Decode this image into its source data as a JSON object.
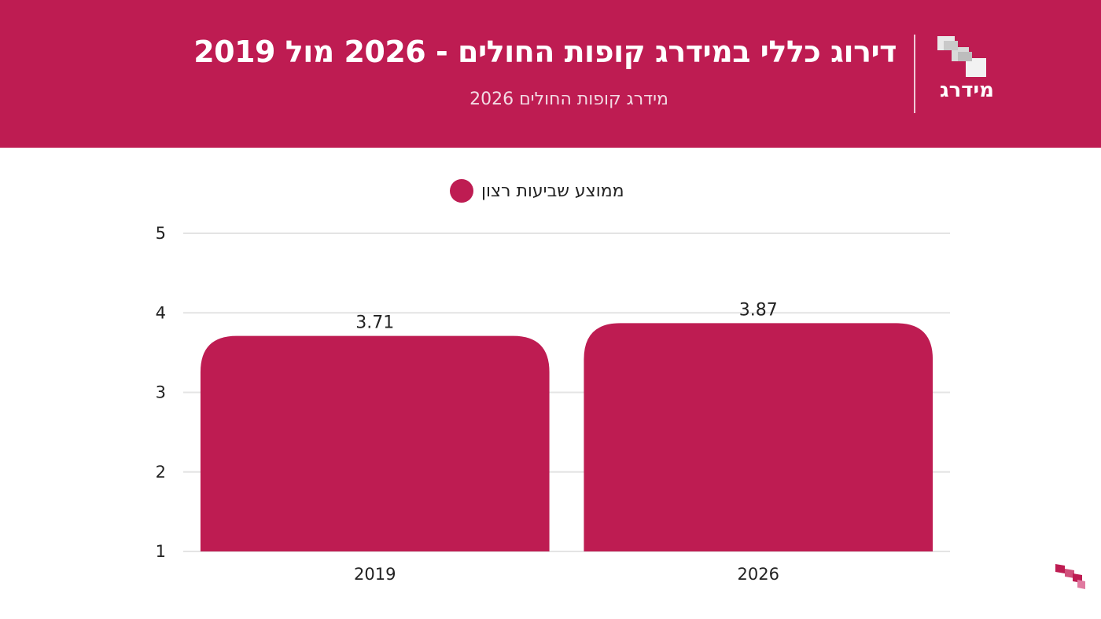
{
  "header": {
    "title": "דירוג כללי במידרג קופות החולים - 2026 מול 2019",
    "subtitle": "מידרג קופות החולים 2026",
    "logo_text": "מידרג",
    "brand_color": "#be1c52"
  },
  "chart_data": {
    "type": "bar",
    "categories": [
      "2019",
      "2026"
    ],
    "series": [
      {
        "name": "ממוצע שביעות רצון",
        "values": [
          3.71,
          3.87
        ],
        "data_labels": [
          "3.71",
          "3.87"
        ]
      }
    ],
    "ylim": [
      1,
      5
    ],
    "yticks": [
      "1",
      "2",
      "3",
      "4",
      "5"
    ],
    "grid": true,
    "legend": "top-center",
    "bar_color": "#be1c52"
  }
}
